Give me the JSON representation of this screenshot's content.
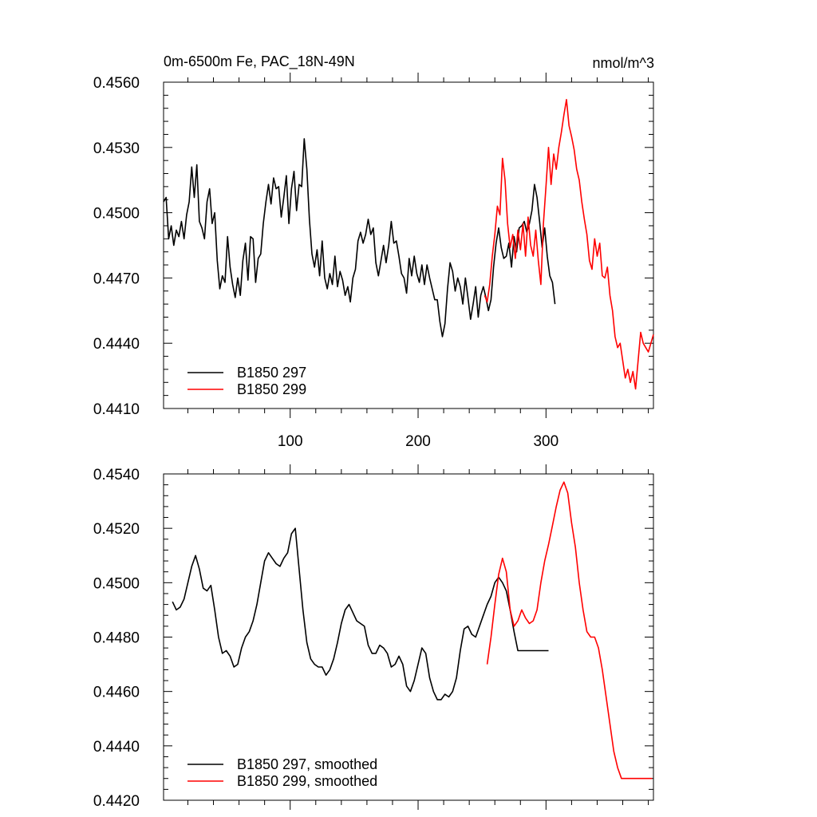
{
  "chart_data": [
    {
      "type": "line",
      "title": "0m-6500m Fe, PAC_18N-49N",
      "units": "nmol/m^3",
      "xlim": [
        1,
        384
      ],
      "ylim": [
        0.441,
        0.456
      ],
      "xticks": [
        100,
        200,
        300
      ],
      "xtick_labels": [
        "100",
        "200",
        "300"
      ],
      "yticks": [
        0.441,
        0.444,
        0.447,
        0.45,
        0.453,
        0.456
      ],
      "ytick_labels": [
        "0.4410",
        "0.4440",
        "0.4470",
        "0.4500",
        "0.4530",
        "0.4560"
      ],
      "legend_position": "bottom-left",
      "grid": false,
      "series": [
        {
          "name": "B1850 297",
          "color": "#000000",
          "x": [
            1,
            3,
            5,
            7,
            9,
            11,
            13,
            15,
            17,
            19,
            21,
            23,
            25,
            27,
            29,
            31,
            33,
            35,
            37,
            39,
            41,
            43,
            45,
            47,
            49,
            51,
            53,
            55,
            57,
            59,
            61,
            63,
            65,
            67,
            69,
            71,
            73,
            75,
            77,
            79,
            81,
            83,
            85,
            87,
            89,
            91,
            93,
            95,
            97,
            99,
            101,
            103,
            105,
            107,
            109,
            111,
            113,
            115,
            117,
            119,
            121,
            123,
            125,
            127,
            129,
            131,
            133,
            135,
            137,
            139,
            141,
            143,
            145,
            147,
            149,
            151,
            153,
            155,
            157,
            159,
            161,
            163,
            165,
            167,
            169,
            171,
            173,
            175,
            177,
            179,
            181,
            183,
            185,
            187,
            189,
            191,
            193,
            195,
            197,
            199,
            201,
            203,
            205,
            207,
            209,
            211,
            213,
            215,
            217,
            219,
            221,
            223,
            225,
            227,
            229,
            231,
            233,
            235,
            237,
            239,
            241,
            243,
            245,
            247,
            249,
            251,
            253,
            255,
            257,
            259,
            261,
            263,
            265,
            267,
            269,
            271,
            273,
            275,
            277,
            279,
            281,
            283,
            285,
            287,
            289,
            291,
            293,
            295,
            297,
            299,
            301,
            303,
            305,
            307
          ],
          "y": [
            0.4505,
            0.4507,
            0.4488,
            0.4494,
            0.4485,
            0.4492,
            0.4489,
            0.4496,
            0.4488,
            0.4499,
            0.4505,
            0.4521,
            0.4507,
            0.4522,
            0.4496,
            0.4493,
            0.4488,
            0.4505,
            0.4511,
            0.4495,
            0.45,
            0.4478,
            0.4465,
            0.4471,
            0.4468,
            0.4489,
            0.4475,
            0.4467,
            0.4461,
            0.447,
            0.4462,
            0.4478,
            0.4486,
            0.4469,
            0.4489,
            0.4488,
            0.4468,
            0.4479,
            0.4481,
            0.4495,
            0.4505,
            0.4513,
            0.4504,
            0.4516,
            0.4511,
            0.4512,
            0.4498,
            0.4507,
            0.4517,
            0.4495,
            0.4511,
            0.4519,
            0.4501,
            0.4513,
            0.4512,
            0.4534,
            0.452,
            0.4497,
            0.4481,
            0.4475,
            0.4483,
            0.4471,
            0.4487,
            0.447,
            0.4465,
            0.4472,
            0.4467,
            0.448,
            0.4466,
            0.4473,
            0.4469,
            0.4462,
            0.4466,
            0.4459,
            0.447,
            0.4474,
            0.4487,
            0.4491,
            0.4486,
            0.449,
            0.4497,
            0.449,
            0.4493,
            0.4477,
            0.4471,
            0.4478,
            0.4485,
            0.4477,
            0.4485,
            0.4496,
            0.4486,
            0.4487,
            0.448,
            0.4472,
            0.447,
            0.4463,
            0.4479,
            0.4471,
            0.448,
            0.4472,
            0.4468,
            0.4476,
            0.4467,
            0.4476,
            0.447,
            0.4465,
            0.446,
            0.446,
            0.445,
            0.4443,
            0.4449,
            0.4465,
            0.4477,
            0.4473,
            0.4464,
            0.447,
            0.4466,
            0.4458,
            0.447,
            0.4461,
            0.4451,
            0.4458,
            0.4466,
            0.4452,
            0.4462,
            0.4466,
            0.4461,
            0.4455,
            0.446,
            0.4475,
            0.4486,
            0.4493,
            0.4484,
            0.4479,
            0.448,
            0.4486,
            0.4475,
            0.4489,
            0.4482,
            0.4493,
            0.4494,
            0.4496,
            0.4491,
            0.4495,
            0.4501,
            0.4513,
            0.4507,
            0.4496,
            0.4484,
            0.4493,
            0.448,
            0.4471,
            0.4468,
            0.4458
          ]
        },
        {
          "name": "B1850 299",
          "color": "#ff0000",
          "x": [
            252,
            254,
            256,
            258,
            260,
            262,
            264,
            266,
            268,
            270,
            272,
            274,
            276,
            278,
            280,
            282,
            284,
            286,
            288,
            290,
            292,
            294,
            296,
            298,
            300,
            302,
            304,
            306,
            308,
            310,
            312,
            314,
            316,
            318,
            320,
            322,
            324,
            326,
            328,
            330,
            332,
            334,
            336,
            338,
            340,
            342,
            344,
            346,
            348,
            350,
            352,
            354,
            356,
            358,
            360,
            362,
            364,
            366,
            368,
            370,
            372,
            374,
            376,
            378,
            380,
            382,
            384
          ],
          "y": [
            0.4462,
            0.4459,
            0.4467,
            0.448,
            0.449,
            0.4503,
            0.4499,
            0.4525,
            0.4515,
            0.4495,
            0.4484,
            0.449,
            0.4479,
            0.4492,
            0.4483,
            0.4495,
            0.448,
            0.4498,
            0.4485,
            0.448,
            0.4492,
            0.4478,
            0.4467,
            0.4495,
            0.4512,
            0.453,
            0.4513,
            0.4527,
            0.452,
            0.453,
            0.4537,
            0.4545,
            0.4552,
            0.454,
            0.4535,
            0.4529,
            0.452,
            0.4515,
            0.4505,
            0.4497,
            0.449,
            0.4478,
            0.4474,
            0.4488,
            0.448,
            0.4486,
            0.4471,
            0.447,
            0.4475,
            0.4462,
            0.4455,
            0.4443,
            0.4438,
            0.444,
            0.4432,
            0.4424,
            0.4428,
            0.4422,
            0.4427,
            0.4419,
            0.4432,
            0.4445,
            0.444,
            0.4438,
            0.4436,
            0.444,
            0.4444
          ]
        }
      ]
    },
    {
      "type": "line",
      "title": "",
      "xlim": [
        1,
        384
      ],
      "ylim": [
        0.442,
        0.454
      ],
      "yticks": [
        0.442,
        0.444,
        0.446,
        0.448,
        0.45,
        0.452,
        0.454
      ],
      "ytick_labels": [
        "0.4420",
        "0.4440",
        "0.4460",
        "0.4480",
        "0.4500",
        "0.4520",
        "0.4540"
      ],
      "legend_position": "bottom-left",
      "grid": false,
      "series": [
        {
          "name": "B1850 297, smoothed",
          "color": "#000000",
          "x": [
            8,
            11,
            14,
            17,
            20,
            23,
            26,
            29,
            32,
            35,
            38,
            41,
            44,
            47,
            50,
            53,
            56,
            59,
            62,
            65,
            68,
            71,
            74,
            77,
            80,
            83,
            86,
            89,
            92,
            95,
            98,
            101,
            104,
            107,
            110,
            113,
            116,
            119,
            122,
            125,
            128,
            131,
            134,
            137,
            140,
            143,
            146,
            149,
            152,
            155,
            158,
            161,
            164,
            167,
            170,
            173,
            176,
            179,
            182,
            185,
            188,
            191,
            194,
            197,
            200,
            203,
            206,
            209,
            212,
            215,
            218,
            221,
            224,
            227,
            230,
            233,
            236,
            239,
            242,
            245,
            248,
            251,
            254,
            257,
            260,
            263,
            266,
            269,
            272,
            275,
            278,
            281,
            284,
            287,
            290,
            293,
            296,
            299,
            302
          ],
          "y": [
            0.4493,
            0.449,
            0.4491,
            0.4494,
            0.45,
            0.4506,
            0.451,
            0.4505,
            0.4498,
            0.4497,
            0.4499,
            0.449,
            0.448,
            0.4474,
            0.4475,
            0.4473,
            0.4469,
            0.447,
            0.4476,
            0.448,
            0.4482,
            0.4486,
            0.4492,
            0.45,
            0.4508,
            0.4511,
            0.4509,
            0.4507,
            0.4506,
            0.4509,
            0.4511,
            0.4518,
            0.452,
            0.4505,
            0.449,
            0.4478,
            0.4472,
            0.447,
            0.4469,
            0.4469,
            0.4466,
            0.4468,
            0.4472,
            0.4478,
            0.4485,
            0.449,
            0.4492,
            0.4489,
            0.4486,
            0.4485,
            0.4484,
            0.4477,
            0.4474,
            0.4474,
            0.4477,
            0.4476,
            0.4474,
            0.4469,
            0.447,
            0.4473,
            0.447,
            0.4462,
            0.446,
            0.4464,
            0.447,
            0.4476,
            0.4474,
            0.4465,
            0.446,
            0.4457,
            0.4457,
            0.4459,
            0.4458,
            0.446,
            0.4465,
            0.4475,
            0.4483,
            0.4484,
            0.4481,
            0.448,
            0.4484,
            0.4488,
            0.4492,
            0.4495,
            0.45,
            0.4502,
            0.45,
            0.4497,
            0.449,
            0.4482,
            0.4475,
            0.4475,
            0.4475,
            0.4475,
            0.4475,
            0.4475,
            0.4475,
            0.4475,
            0.4475
          ]
        },
        {
          "name": "B1850 299, smoothed",
          "color": "#ff0000",
          "x": [
            254,
            257,
            260,
            263,
            266,
            269,
            272,
            275,
            278,
            281,
            284,
            287,
            290,
            293,
            296,
            299,
            302,
            305,
            308,
            311,
            314,
            317,
            320,
            323,
            326,
            329,
            332,
            335,
            338,
            341,
            344,
            347,
            350,
            353,
            356,
            359,
            362,
            365,
            368,
            371,
            374,
            377,
            380,
            383
          ],
          "y": [
            0.447,
            0.448,
            0.4492,
            0.4503,
            0.4509,
            0.4504,
            0.449,
            0.4484,
            0.4486,
            0.449,
            0.4487,
            0.4485,
            0.4486,
            0.449,
            0.45,
            0.4508,
            0.4514,
            0.4521,
            0.4528,
            0.4534,
            0.4537,
            0.4533,
            0.4522,
            0.4513,
            0.45,
            0.449,
            0.4482,
            0.448,
            0.448,
            0.4476,
            0.4468,
            0.4458,
            0.4448,
            0.4438,
            0.4432,
            0.4428,
            0.4428,
            0.4428,
            0.4428,
            0.4428,
            0.4428,
            0.4428,
            0.4428,
            0.4428
          ]
        }
      ]
    }
  ]
}
